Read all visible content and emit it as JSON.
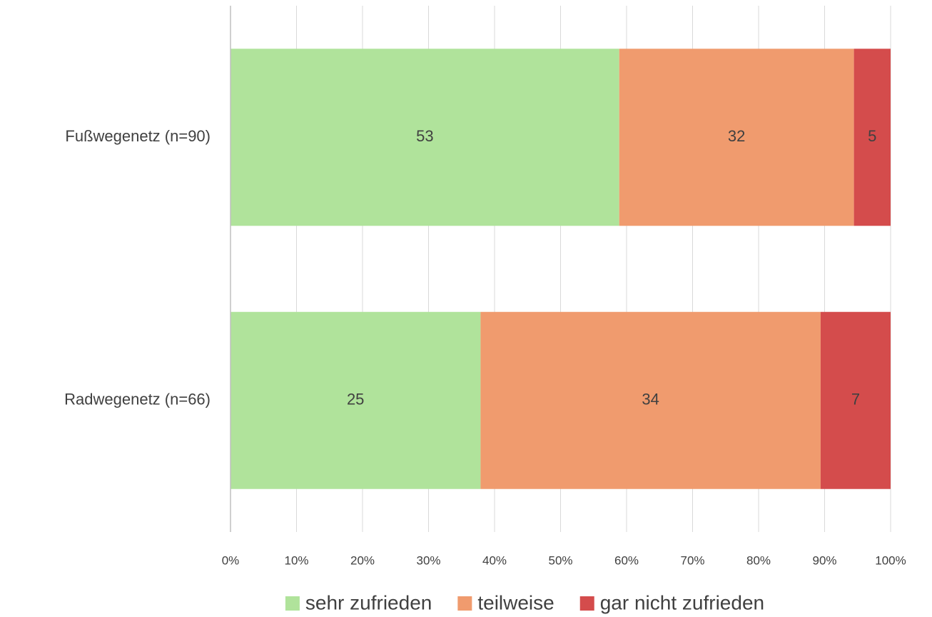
{
  "chart_data": {
    "type": "stacked_bar_100",
    "categories": [
      "Fußwegenetz (n=90)",
      "Radwegenetz (n=66)"
    ],
    "series": [
      {
        "name": "sehr zufrieden",
        "color": "#b0e39b",
        "values": [
          53,
          25
        ]
      },
      {
        "name": "teilweise",
        "color": "#f09b6e",
        "values": [
          32,
          34
        ]
      },
      {
        "name": "gar nicht zufrieden",
        "color": "#d44c4c",
        "values": [
          5,
          7
        ]
      }
    ],
    "xlim": [
      0,
      100
    ],
    "xticks": [
      {
        "value": 0,
        "label": "0%"
      },
      {
        "value": 10,
        "label": "10%"
      },
      {
        "value": 20,
        "label": "20%"
      },
      {
        "value": 30,
        "label": "30%"
      },
      {
        "value": 40,
        "label": "40%"
      },
      {
        "value": 50,
        "label": "50%"
      },
      {
        "value": 60,
        "label": "60%"
      },
      {
        "value": 70,
        "label": "70%"
      },
      {
        "value": 80,
        "label": "80%"
      },
      {
        "value": 90,
        "label": "90%"
      },
      {
        "value": 100,
        "label": "100%"
      }
    ],
    "grid": true,
    "legend": "bottom"
  }
}
